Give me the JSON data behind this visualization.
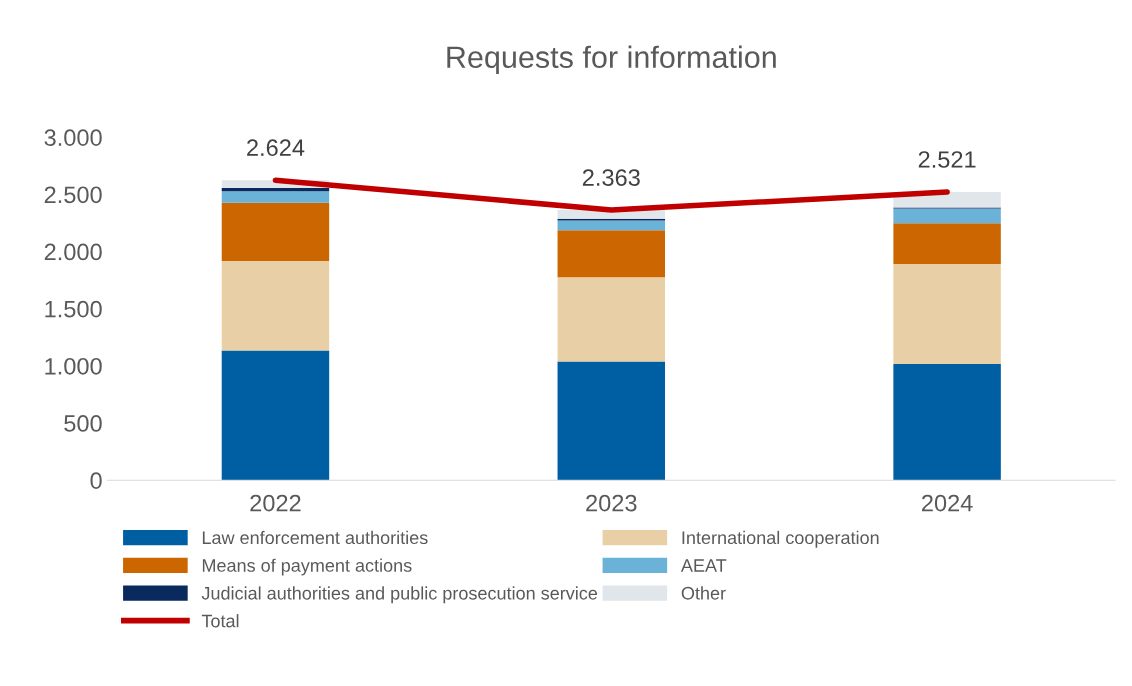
{
  "chart_data": {
    "type": "bar",
    "title": "Requests for information",
    "stacked": true,
    "categories": [
      "2022",
      "2023",
      "2024"
    ],
    "series": [
      {
        "name": "Law enforcement authorities",
        "color": "#005ea2",
        "values": [
          1134,
          1038,
          1017
        ]
      },
      {
        "name": "International cooperation",
        "color": "#e8cfa5",
        "values": [
          784,
          737,
          874
        ]
      },
      {
        "name": "Means of payment actions",
        "color": "#cc6600",
        "values": [
          509,
          412,
          357
        ]
      },
      {
        "name": "AEAT",
        "color": "#6ab2d8",
        "values": [
          101,
          85,
          129
        ]
      },
      {
        "name": "Judicial authorities and public prosecution service",
        "color": "#0a2a5e",
        "values": [
          27,
          14,
          9
        ]
      },
      {
        "name": "Other",
        "color": "#e1e6eb",
        "values": [
          69,
          77,
          135
        ]
      },
      {
        "name": "Total",
        "type": "line",
        "color": "#c00000",
        "values": [
          2624,
          2363,
          2521
        ],
        "value_labels": [
          "2.624",
          "2.363",
          "2.521"
        ]
      }
    ],
    "ylim": [
      0,
      3000
    ],
    "yticks": [
      0,
      500,
      {
        "value": 1000,
        "label": "1.000"
      },
      {
        "value": 1500,
        "label": "1.500"
      },
      {
        "value": 2000,
        "label": "2.000"
      },
      {
        "value": 2500,
        "label": "2.500"
      },
      {
        "value": 3000,
        "label": "3.000"
      }
    ],
    "grid": false,
    "legend": "bottom"
  }
}
